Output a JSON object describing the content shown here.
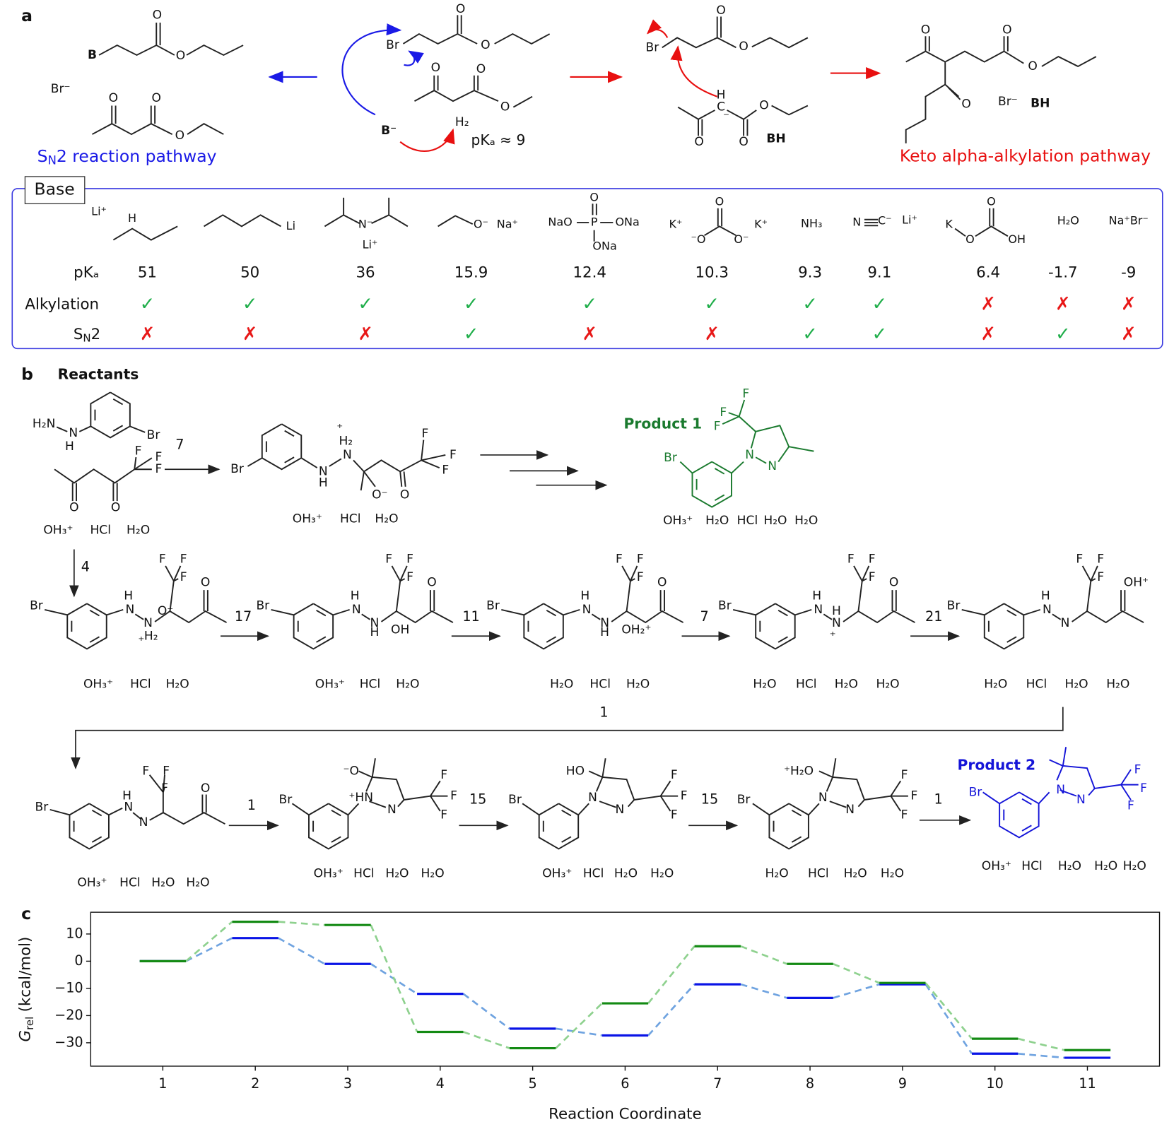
{
  "panel_a": {
    "letter": "a",
    "sn2_side": {
      "atoms": [
        "B",
        "O",
        "O",
        "Br⁻",
        "O",
        "O",
        "O"
      ],
      "label": {
        "s": "S",
        "sub": "N",
        "rest": "2 reaction pathway"
      }
    },
    "mechanism": {
      "atoms": [
        "O",
        "Br",
        "O",
        "O",
        "O",
        "O",
        "H₂",
        "B⁻"
      ],
      "pka": "pKₐ ≈ 9"
    },
    "carbanion": {
      "atoms": [
        "O",
        "Br",
        "O",
        "H",
        "C",
        "⁻",
        "O",
        "O",
        "O",
        "BH"
      ]
    },
    "product": {
      "atoms": [
        "O",
        "O",
        "O",
        "O",
        "Br⁻",
        "BH"
      ],
      "label": "Keto alpha-alkylation pathway"
    }
  },
  "base_table": {
    "title": "Base",
    "pka_label": "pKₐ",
    "alkylation_label": "Alkylation",
    "sn2_label": {
      "s": "S",
      "sub": "N",
      "rest": "2"
    },
    "bases": [
      {
        "atoms": [
          "Li⁺",
          "H"
        ],
        "pka": 51,
        "alkylation": "✓",
        "sn2": "✗"
      },
      {
        "atoms": [
          "Li"
        ],
        "pka": 50,
        "alkylation": "✓",
        "sn2": "✗"
      },
      {
        "atoms": [
          "N⁻",
          "Li⁺"
        ],
        "pka": 36,
        "alkylation": "✓",
        "sn2": "✗"
      },
      {
        "atoms": [
          "O⁻",
          "Na⁺"
        ],
        "pka": 15.9,
        "alkylation": "✓",
        "sn2": "✓"
      },
      {
        "atoms": [
          "NaO",
          "P",
          "ONa",
          "O",
          "ONa"
        ],
        "pka": 12.4,
        "alkylation": "✓",
        "sn2": "✗"
      },
      {
        "atoms": [
          "K⁺",
          "⁻O",
          "O",
          "O⁻",
          "K⁺"
        ],
        "pka": 10.3,
        "alkylation": "✓",
        "sn2": "✗"
      },
      {
        "atoms": [
          "NH₃"
        ],
        "pka": 9.3,
        "alkylation": "✓",
        "sn2": "✓"
      },
      {
        "atoms": [
          "N",
          "C⁻",
          "Li⁺"
        ],
        "pka": 9.1,
        "alkylation": "✓",
        "sn2": "✓"
      },
      {
        "atoms": [
          "K",
          "O",
          "O",
          "OH"
        ],
        "pka": 6.4,
        "alkylation": "✗",
        "sn2": "✗"
      },
      {
        "atoms": [
          "H₂O"
        ],
        "pka": -1.7,
        "alkylation": "✗",
        "sn2": "✓"
      },
      {
        "atoms": [
          "Na⁺Br⁻"
        ],
        "pka": -9,
        "alkylation": "✗",
        "sn2": "✗"
      }
    ]
  },
  "panel_b": {
    "letter": "b",
    "reactants_label": "Reactants",
    "product1_label": "Product 1",
    "product2_label": "Product 2",
    "steps": [
      7,
      4,
      17,
      11,
      7,
      21,
      1,
      1,
      15,
      15,
      1
    ],
    "structures": [
      {
        "atoms": [
          "H₂N",
          "N",
          "H",
          "Br",
          "F",
          "F",
          "F",
          "O",
          "O"
        ],
        "counterions": [
          "OH₃⁺",
          "HCl",
          "H₂O"
        ]
      },
      {
        "atoms": [
          "Br",
          "N",
          "H",
          "⁺",
          "H₂",
          "N",
          "O⁻",
          "O",
          "F",
          "F",
          "F"
        ],
        "counterions": [
          "OH₃⁺",
          "HCl",
          "H₂O"
        ]
      },
      {
        "atoms": [
          "F",
          "F",
          "F",
          "N",
          "N",
          "Br"
        ],
        "counterions": [
          "OH₃⁺",
          "H₂O",
          "HCl",
          "H₂O",
          "H₂O"
        ]
      },
      {
        "atoms": [
          "F",
          "F",
          "F",
          "O",
          "Br",
          "H",
          "N",
          "N",
          "H₂",
          "⁺",
          "O⁻"
        ],
        "counterions": [
          "OH₃⁺",
          "HCl",
          "H₂O"
        ]
      },
      {
        "atoms": [
          "F",
          "F",
          "F",
          "O",
          "Br",
          "H",
          "N",
          "N",
          "H",
          "OH"
        ],
        "counterions": [
          "OH₃⁺",
          "HCl",
          "H₂O"
        ]
      },
      {
        "atoms": [
          "F",
          "F",
          "F",
          "O",
          "Br",
          "H",
          "N",
          "N",
          "H",
          "OH₂⁺"
        ],
        "counterions": [
          "H₂O",
          "HCl",
          "H₂O"
        ]
      },
      {
        "atoms": [
          "F",
          "F",
          "F",
          "O",
          "Br",
          "H",
          "N",
          "N",
          "H",
          "⁺"
        ],
        "counterions": [
          "H₂O",
          "HCl",
          "H₂O",
          "H₂O"
        ]
      },
      {
        "atoms": [
          "F",
          "F",
          "F",
          "OH⁺",
          "Br",
          "H",
          "N",
          "N"
        ],
        "counterions": [
          "H₂O",
          "HCl",
          "H₂O",
          "H₂O"
        ]
      },
      {
        "atoms": [
          "F",
          "F",
          "F",
          "O",
          "Br",
          "H",
          "N",
          "N"
        ],
        "counterions": [
          "OH₃⁺",
          "HCl",
          "H₂O",
          "H₂O"
        ]
      },
      {
        "atoms": [
          "⁻O",
          "Br",
          "⁺HN",
          "N",
          "F",
          "F",
          "F"
        ],
        "counterions": [
          "OH₃⁺",
          "HCl",
          "H₂O",
          "H₂O"
        ]
      },
      {
        "atoms": [
          "HO",
          "Br",
          "N",
          "N",
          "F",
          "F",
          "F"
        ],
        "counterions": [
          "OH₃⁺",
          "HCl",
          "H₂O",
          "H₂O"
        ]
      },
      {
        "atoms": [
          "⁺H₂O",
          "Br",
          "N",
          "N",
          "F",
          "F",
          "F"
        ],
        "counterions": [
          "H₂O",
          "HCl",
          "H₂O",
          "H₂O"
        ]
      },
      {
        "atoms": [
          "N",
          "N",
          "F",
          "F",
          "F",
          "Br"
        ],
        "counterions": [
          "OH₃⁺",
          "HCl",
          "H₂O",
          "H₂O",
          "H₂O"
        ]
      }
    ]
  },
  "chart_data": {
    "type": "energy",
    "letter": "c",
    "x_label": "Reaction Coordinate",
    "y_label": {
      "symbol": "G",
      "subscript": "rel",
      "unit": "(kcal/mol)"
    },
    "x": [
      1,
      2,
      3,
      4,
      5,
      6,
      7,
      8,
      9,
      10,
      11
    ],
    "xlim": [
      0.22,
      11.78
    ],
    "xticks": [
      1,
      2,
      3,
      4,
      5,
      6,
      7,
      8,
      9,
      10,
      11
    ],
    "ylim": [
      -38.6,
      18
    ],
    "yticks": [
      10,
      0,
      {
        "value": -10,
        "label": "−10"
      },
      {
        "value": -20,
        "label": "−20"
      },
      {
        "value": -30,
        "label": "−30"
      }
    ],
    "series": [
      {
        "color": "#0a14e6",
        "connector_color": "#6fa3e0",
        "values": [
          0,
          8.5,
          -1,
          -12,
          -24.8,
          -27.3,
          -8.5,
          -13.5,
          -8.5,
          -34,
          -35.5
        ]
      },
      {
        "color": "#138a13",
        "connector_color": "#8ed18e",
        "values": [
          0,
          14.5,
          13.3,
          -26,
          -32,
          -15.5,
          5.5,
          -1,
          -8,
          -28.5,
          -32.7
        ]
      }
    ]
  }
}
